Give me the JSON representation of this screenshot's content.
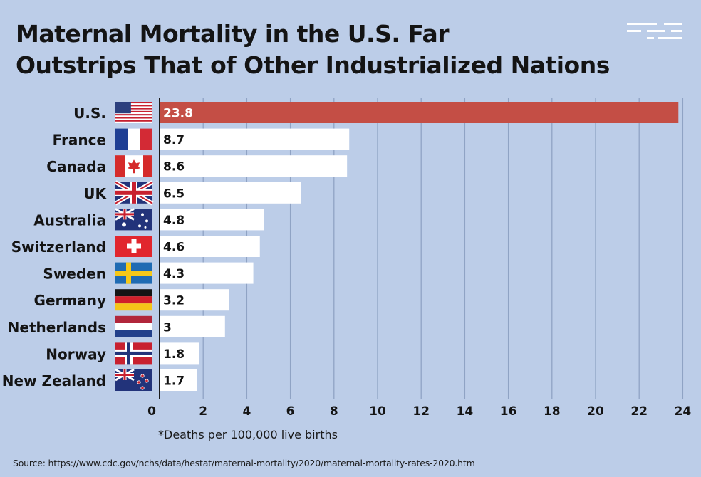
{
  "header": {
    "title_line1": "Maternal Mortality in the U.S. Far",
    "title_line2": "Outstrips That of Other Industrialized Nations"
  },
  "logo_icon": "dashed-lines-logo-icon",
  "footnote": "*Deaths per 100,000 live births",
  "source": "Source: https://www.cdc.gov/nchs/data/hestat/maternal-mortality/2020/maternal-mortality-rates-2020.htm",
  "colors": {
    "background": "#bccde8",
    "highlight_bar": "#c44e45",
    "bar": "#ffffff",
    "gridline": "#8fa3c4",
    "text": "#141414"
  },
  "chart_data": {
    "type": "bar",
    "orientation": "horizontal",
    "title": "Maternal Mortality in the U.S. Far Outstrips That of Other Industrialized Nations",
    "categories": [
      "U.S.",
      "France",
      "Canada",
      "UK",
      "Australia",
      "Switzerland",
      "Sweden",
      "Germany",
      "Netherlands",
      "Norway",
      "New Zealand"
    ],
    "flags": [
      "us-flag-icon",
      "france-flag-icon",
      "canada-flag-icon",
      "uk-flag-icon",
      "australia-flag-icon",
      "switzerland-flag-icon",
      "sweden-flag-icon",
      "germany-flag-icon",
      "netherlands-flag-icon",
      "norway-flag-icon",
      "new-zealand-flag-icon"
    ],
    "values": [
      23.8,
      8.7,
      8.6,
      6.5,
      4.8,
      4.6,
      4.3,
      3.2,
      3,
      1.8,
      1.7
    ],
    "value_labels": [
      "23.8",
      "8.7",
      "8.6",
      "6.5",
      "4.8",
      "4.6",
      "4.3",
      "3.2",
      "3",
      "1.8",
      "1.7"
    ],
    "highlight_index": 0,
    "xticks": [
      "0",
      "2",
      "4",
      "6",
      "8",
      "10",
      "12",
      "14",
      "16",
      "18",
      "20",
      "22",
      "24"
    ],
    "xlim": [
      0,
      24.5
    ],
    "grid": true
  }
}
